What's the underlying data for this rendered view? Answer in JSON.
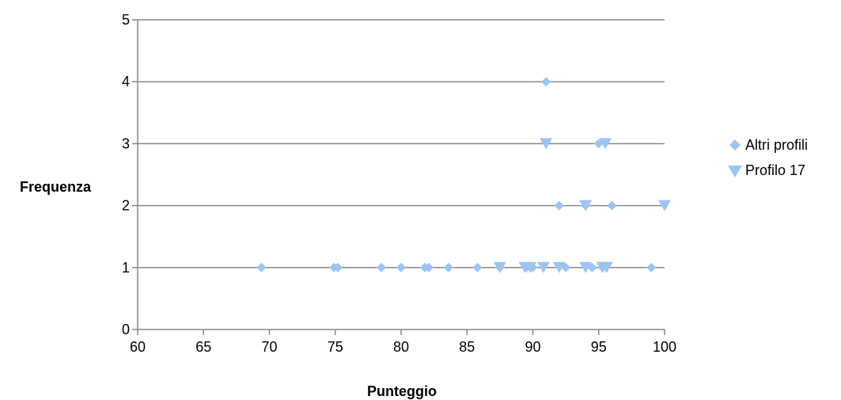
{
  "chart_data": {
    "type": "scatter",
    "title": "",
    "xlabel": "Punteggio",
    "ylabel": "Frequenza",
    "xlim": [
      60,
      100
    ],
    "ylim": [
      0,
      5
    ],
    "xticks": [
      "60",
      "65",
      "70",
      "75",
      "80",
      "85",
      "90",
      "95",
      "100"
    ],
    "yticks": [
      "0",
      "1",
      "2",
      "3",
      "4",
      "5"
    ],
    "grid": "horizontal",
    "legend_position": "right",
    "series": [
      {
        "name": "Altri profili",
        "marker": "diamond",
        "color": "#9DC3F0",
        "points": [
          [
            69.4,
            1
          ],
          [
            74.9,
            1
          ],
          [
            75.2,
            1
          ],
          [
            78.5,
            1
          ],
          [
            80.0,
            1
          ],
          [
            81.8,
            1
          ],
          [
            82.1,
            1
          ],
          [
            83.6,
            1
          ],
          [
            85.8,
            1
          ],
          [
            87.5,
            1
          ],
          [
            89.5,
            1
          ],
          [
            90.0,
            1
          ],
          [
            91.0,
            4
          ],
          [
            92.0,
            2
          ],
          [
            92.5,
            1
          ],
          [
            94.0,
            2
          ],
          [
            94.5,
            1
          ],
          [
            95.0,
            3
          ],
          [
            95.3,
            1
          ],
          [
            96.0,
            2
          ],
          [
            99.0,
            1
          ]
        ]
      },
      {
        "name": "Profilo 17",
        "marker": "triangle-down",
        "color": "#9DC3F0",
        "points": [
          [
            87.5,
            1
          ],
          [
            89.4,
            1
          ],
          [
            89.8,
            1
          ],
          [
            90.8,
            1
          ],
          [
            91.0,
            3
          ],
          [
            92.0,
            1
          ],
          [
            94.0,
            1
          ],
          [
            94.0,
            2
          ],
          [
            95.3,
            1
          ],
          [
            95.6,
            1
          ],
          [
            95.5,
            3
          ],
          [
            100.0,
            2
          ]
        ]
      }
    ]
  }
}
